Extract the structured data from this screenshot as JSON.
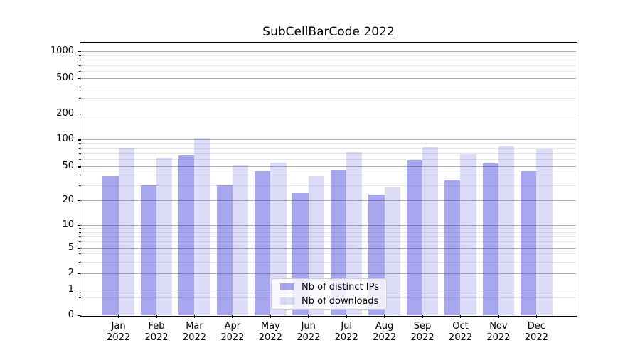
{
  "title": "SubCellBarCode 2022",
  "colors": {
    "bar_distinct_ips": "rgba(60,60,220,0.45)",
    "bar_downloads": "rgba(60,60,220,0.18)",
    "grid_major": "#b0b0b0",
    "grid_minor": "#e6e6e6",
    "axis": "#000000",
    "legend_background": "rgba(255,255,255,0.8)",
    "legend_border": "#cccccc"
  },
  "legend": {
    "position": "lower center",
    "items": [
      {
        "label": "Nb of distinct IPs"
      },
      {
        "label": "Nb of downloads"
      }
    ]
  },
  "chart_data": {
    "type": "bar",
    "title": "SubCellBarCode 2022",
    "xlabel": "",
    "ylabel": "",
    "x_tick_months": [
      "Jan",
      "Feb",
      "Mar",
      "Apr",
      "May",
      "Jun",
      "Jul",
      "Aug",
      "Sep",
      "Oct",
      "Nov",
      "Dec"
    ],
    "x_tick_year": "2022",
    "series": [
      {
        "name": "Nb of distinct IPs",
        "color": "rgba(60,60,220,0.45)",
        "values": [
          38,
          30,
          66,
          30,
          44,
          24,
          45,
          23,
          58,
          35,
          54,
          44
        ]
      },
      {
        "name": "Nb of downloads",
        "color": "rgba(60,60,220,0.18)",
        "values": [
          80,
          63,
          102,
          51,
          55,
          38,
          72,
          28,
          82,
          68,
          86,
          78
        ]
      }
    ],
    "yscale": "log-like with 0 baseline",
    "yticks": [
      0,
      1,
      2,
      5,
      10,
      20,
      50,
      100,
      200,
      500,
      1000
    ],
    "y_minor_ticks": [
      0.6,
      0.7,
      0.8,
      0.9,
      3,
      4,
      6,
      7,
      8,
      9,
      30,
      40,
      60,
      70,
      80,
      90,
      300,
      400,
      600,
      700,
      800,
      900
    ],
    "ylim": [
      0,
      1400
    ],
    "grid": true,
    "legend_position": "lower center"
  }
}
